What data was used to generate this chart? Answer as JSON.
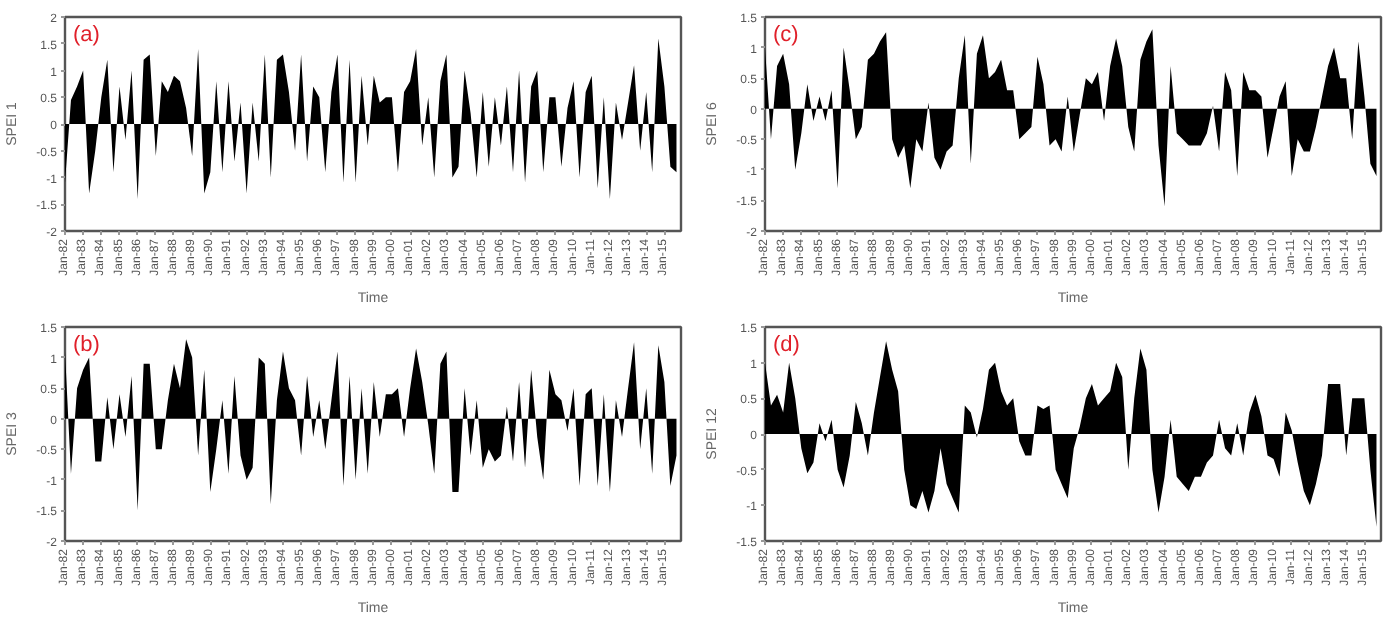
{
  "chart_data": [
    {
      "type": "area",
      "annotations": [
        "(a)"
      ],
      "xlabel": "Time",
      "ylabel": "SPEI 1",
      "grid": false,
      "color": "#000000",
      "x": [
        "1982-01",
        "1982-05",
        "1982-09",
        "1983-01",
        "1983-05",
        "1983-09",
        "1984-01",
        "1984-05",
        "1984-09",
        "1985-01",
        "1985-05",
        "1985-09",
        "1986-01",
        "1986-05",
        "1986-09",
        "1987-01",
        "1987-05",
        "1987-09",
        "1988-01",
        "1988-05",
        "1988-09",
        "1989-01",
        "1989-05",
        "1989-09",
        "1990-01",
        "1990-05",
        "1990-09",
        "1991-01",
        "1991-05",
        "1991-09",
        "1992-01",
        "1992-05",
        "1992-09",
        "1993-01",
        "1993-05",
        "1993-09",
        "1994-01",
        "1994-05",
        "1994-09",
        "1995-01",
        "1995-05",
        "1995-09",
        "1996-01",
        "1996-05",
        "1996-09",
        "1997-01",
        "1997-05",
        "1997-09",
        "1998-01",
        "1998-05",
        "1998-09",
        "1999-01",
        "1999-05",
        "1999-09",
        "2000-01",
        "2000-05",
        "2000-09",
        "2001-01",
        "2001-05",
        "2001-09",
        "2002-01",
        "2002-05",
        "2002-09",
        "2003-01",
        "2003-05",
        "2003-09",
        "2004-01",
        "2004-05",
        "2004-09",
        "2005-01",
        "2005-05",
        "2005-09",
        "2006-01",
        "2006-05",
        "2006-09",
        "2007-01",
        "2007-05",
        "2007-09",
        "2008-01",
        "2008-05",
        "2008-09",
        "2009-01",
        "2009-05",
        "2009-09",
        "2010-01",
        "2010-05",
        "2010-09",
        "2011-01",
        "2011-05",
        "2011-09",
        "2012-01",
        "2012-05",
        "2012-09",
        "2013-01",
        "2013-05",
        "2013-09",
        "2014-01",
        "2014-05",
        "2014-09",
        "2015-01",
        "2015-05",
        "2015-09"
      ],
      "values": [
        -1.1,
        0.45,
        0.7,
        1.0,
        -1.3,
        -0.5,
        0.5,
        1.2,
        -0.9,
        0.7,
        -0.3,
        1.0,
        -1.4,
        1.2,
        1.3,
        -0.6,
        0.8,
        0.6,
        0.9,
        0.8,
        0.3,
        -0.6,
        1.4,
        -1.3,
        -0.9,
        0.8,
        -0.9,
        0.8,
        -0.7,
        0.4,
        -1.3,
        0.4,
        -0.7,
        1.3,
        -1.0,
        1.2,
        1.3,
        0.6,
        -0.5,
        1.3,
        -0.7,
        0.7,
        0.5,
        -0.9,
        0.6,
        1.3,
        -1.1,
        1.2,
        -1.1,
        0.9,
        -0.4,
        0.9,
        0.4,
        0.5,
        0.5,
        -0.9,
        0.6,
        0.8,
        1.4,
        -0.4,
        0.5,
        -1.0,
        0.8,
        1.3,
        -1.0,
        -0.8,
        1.0,
        0.2,
        -1.0,
        0.6,
        -0.8,
        0.5,
        -0.4,
        0.7,
        -0.9,
        1.0,
        -1.1,
        0.7,
        1.0,
        -0.9,
        0.5,
        0.5,
        -0.8,
        0.3,
        0.8,
        -1.0,
        0.6,
        0.9,
        -1.2,
        0.5,
        -1.4,
        0.4,
        -0.3,
        0.4,
        1.1,
        -0.5,
        0.6,
        -0.9,
        1.6,
        0.7,
        -0.8,
        -0.9
      ],
      "xlim": [
        "1982-01",
        "2015-12"
      ],
      "ylim": [
        -2,
        2
      ],
      "yticks": [
        -2,
        -1.5,
        -1,
        -0.5,
        0,
        0.5,
        1,
        1.5,
        2
      ],
      "xticks": [
        {
          "value": "1982-01",
          "label": "Jan-82"
        },
        {
          "value": "1983-01",
          "label": "Jan-83"
        },
        {
          "value": "1984-01",
          "label": "Jan-84"
        },
        {
          "value": "1985-01",
          "label": "Jan-85"
        },
        {
          "value": "1986-01",
          "label": "Jan-86"
        },
        {
          "value": "1987-01",
          "label": "Jan-87"
        },
        {
          "value": "1988-01",
          "label": "Jan-88"
        },
        {
          "value": "1989-01",
          "label": "Jan-89"
        },
        {
          "value": "1990-01",
          "label": "Jan-90"
        },
        {
          "value": "1991-01",
          "label": "Jan-91"
        },
        {
          "value": "1992-01",
          "label": "Jan-92"
        },
        {
          "value": "1993-01",
          "label": "Jan-93"
        },
        {
          "value": "1994-01",
          "label": "Jan-94"
        },
        {
          "value": "1995-01",
          "label": "Jan-95"
        },
        {
          "value": "1996-01",
          "label": "Jan-96"
        },
        {
          "value": "1997-01",
          "label": "Jan-97"
        },
        {
          "value": "1998-01",
          "label": "Jan-98"
        },
        {
          "value": "1999-01",
          "label": "Jan-99"
        },
        {
          "value": "2000-01",
          "label": "Jan-00"
        },
        {
          "value": "2001-01",
          "label": "Jan-01"
        },
        {
          "value": "2002-01",
          "label": "Jan-02"
        },
        {
          "value": "2003-01",
          "label": "Jan-03"
        },
        {
          "value": "2004-01",
          "label": "Jan-04"
        },
        {
          "value": "2005-01",
          "label": "Jan-05"
        },
        {
          "value": "2006-01",
          "label": "Jan-06"
        },
        {
          "value": "2007-01",
          "label": "Jan-07"
        },
        {
          "value": "2008-01",
          "label": "Jan-08"
        },
        {
          "value": "2009-01",
          "label": "Jan-09"
        },
        {
          "value": "2010-01",
          "label": "Jan-10"
        },
        {
          "value": "2011-01",
          "label": "Jan-11"
        },
        {
          "value": "2012-01",
          "label": "Jan-12"
        },
        {
          "value": "2013-01",
          "label": "Jan-13"
        },
        {
          "value": "2014-01",
          "label": "Jan-14"
        },
        {
          "value": "2015-01",
          "label": "Jan-15"
        }
      ]
    },
    {
      "type": "area",
      "annotations": [
        "(c)"
      ],
      "xlabel": "Time",
      "ylabel": "SPEI 6",
      "grid": false,
      "color": "#000000",
      "x": [
        "1982-01",
        "1982-05",
        "1982-09",
        "1983-01",
        "1983-05",
        "1983-09",
        "1984-01",
        "1984-05",
        "1984-09",
        "1985-01",
        "1985-05",
        "1985-09",
        "1986-01",
        "1986-05",
        "1986-09",
        "1987-01",
        "1987-05",
        "1987-09",
        "1988-01",
        "1988-05",
        "1988-09",
        "1989-01",
        "1989-05",
        "1989-09",
        "1990-01",
        "1990-05",
        "1990-09",
        "1991-01",
        "1991-05",
        "1991-09",
        "1992-01",
        "1992-05",
        "1992-09",
        "1993-01",
        "1993-05",
        "1993-09",
        "1994-01",
        "1994-05",
        "1994-09",
        "1995-01",
        "1995-05",
        "1995-09",
        "1996-01",
        "1996-05",
        "1996-09",
        "1997-01",
        "1997-05",
        "1997-09",
        "1998-01",
        "1998-05",
        "1998-09",
        "1999-01",
        "1999-05",
        "1999-09",
        "2000-01",
        "2000-05",
        "2000-09",
        "2001-01",
        "2001-05",
        "2001-09",
        "2002-01",
        "2002-05",
        "2002-09",
        "2003-01",
        "2003-05",
        "2003-09",
        "2004-01",
        "2004-05",
        "2004-09",
        "2005-01",
        "2005-05",
        "2005-09",
        "2006-01",
        "2006-05",
        "2006-09",
        "2007-01",
        "2007-05",
        "2007-09",
        "2008-01",
        "2008-05",
        "2008-09",
        "2009-01",
        "2009-05",
        "2009-09",
        "2010-01",
        "2010-05",
        "2010-09",
        "2011-01",
        "2011-05",
        "2011-09",
        "2012-01",
        "2012-05",
        "2012-09",
        "2013-01",
        "2013-05",
        "2013-09",
        "2014-01",
        "2014-05",
        "2014-09",
        "2015-01",
        "2015-05",
        "2015-09"
      ],
      "values": [
        1.0,
        -0.5,
        0.7,
        0.9,
        0.4,
        -1.0,
        -0.4,
        0.4,
        -0.2,
        0.2,
        -0.2,
        0.3,
        -1.3,
        1.0,
        0.3,
        -0.5,
        -0.3,
        0.8,
        0.9,
        1.1,
        1.25,
        -0.5,
        -0.8,
        -0.6,
        -1.3,
        -0.5,
        -0.7,
        0.1,
        -0.8,
        -1.0,
        -0.7,
        -0.6,
        0.5,
        1.2,
        -0.9,
        0.9,
        1.2,
        0.5,
        0.6,
        0.8,
        0.3,
        0.3,
        -0.5,
        -0.4,
        -0.3,
        0.85,
        0.4,
        -0.6,
        -0.5,
        -0.7,
        0.2,
        -0.7,
        -0.1,
        0.5,
        0.4,
        0.6,
        -0.2,
        0.7,
        1.15,
        0.7,
        -0.3,
        -0.7,
        0.8,
        1.1,
        1.3,
        -0.6,
        -1.6,
        0.7,
        -0.4,
        -0.5,
        -0.6,
        -0.6,
        -0.6,
        -0.4,
        0.05,
        -0.7,
        0.6,
        0.3,
        -1.1,
        0.6,
        0.3,
        0.3,
        0.2,
        -0.8,
        -0.3,
        0.2,
        0.45,
        -1.1,
        -0.5,
        -0.7,
        -0.7,
        -0.3,
        0.2,
        0.7,
        1.0,
        0.5,
        0.5,
        -0.5,
        1.1,
        0.2,
        -0.9,
        -1.1
      ],
      "xlim": [
        "1982-01",
        "2015-12"
      ],
      "ylim": [
        -2,
        1.5
      ],
      "yticks": [
        -2,
        -1.5,
        -1,
        -0.5,
        0,
        0.5,
        1,
        1.5
      ],
      "xticks": [
        {
          "value": "1982-01",
          "label": "Jan-82"
        },
        {
          "value": "1983-01",
          "label": "Jan-83"
        },
        {
          "value": "1984-01",
          "label": "Jan-84"
        },
        {
          "value": "1985-01",
          "label": "Jan-85"
        },
        {
          "value": "1986-01",
          "label": "Jan-86"
        },
        {
          "value": "1987-01",
          "label": "Jan-87"
        },
        {
          "value": "1988-01",
          "label": "Jan-88"
        },
        {
          "value": "1989-01",
          "label": "Jan-89"
        },
        {
          "value": "1990-01",
          "label": "Jan-90"
        },
        {
          "value": "1991-01",
          "label": "Jan-91"
        },
        {
          "value": "1992-01",
          "label": "Jan-92"
        },
        {
          "value": "1993-01",
          "label": "Jan-93"
        },
        {
          "value": "1994-01",
          "label": "Jan-94"
        },
        {
          "value": "1995-01",
          "label": "Jan-95"
        },
        {
          "value": "1996-01",
          "label": "Jan-96"
        },
        {
          "value": "1997-01",
          "label": "Jan-97"
        },
        {
          "value": "1998-01",
          "label": "Jan-98"
        },
        {
          "value": "1999-01",
          "label": "Jan-99"
        },
        {
          "value": "2000-01",
          "label": "Jan-00"
        },
        {
          "value": "2001-01",
          "label": "Jan-01"
        },
        {
          "value": "2002-01",
          "label": "Jan-02"
        },
        {
          "value": "2003-01",
          "label": "Jan-03"
        },
        {
          "value": "2004-01",
          "label": "Jan-04"
        },
        {
          "value": "2005-01",
          "label": "Jan-05"
        },
        {
          "value": "2006-01",
          "label": "Jan-06"
        },
        {
          "value": "2007-01",
          "label": "Jan-07"
        },
        {
          "value": "2008-01",
          "label": "Jan-08"
        },
        {
          "value": "2009-01",
          "label": "Jan-09"
        },
        {
          "value": "2010-01",
          "label": "Jan-10"
        },
        {
          "value": "2011-01",
          "label": "Jan-11"
        },
        {
          "value": "2012-01",
          "label": "Jan-12"
        },
        {
          "value": "2013-01",
          "label": "Jan-13"
        },
        {
          "value": "2014-01",
          "label": "Jan-14"
        },
        {
          "value": "2015-01",
          "label": "Jan-15"
        }
      ]
    },
    {
      "type": "area",
      "annotations": [
        "(b)"
      ],
      "xlabel": "Time",
      "ylabel": "SPEI 3",
      "grid": false,
      "color": "#000000",
      "x": [
        "1982-01",
        "1982-05",
        "1982-09",
        "1983-01",
        "1983-05",
        "1983-09",
        "1984-01",
        "1984-05",
        "1984-09",
        "1985-01",
        "1985-05",
        "1985-09",
        "1986-01",
        "1986-05",
        "1986-09",
        "1987-01",
        "1987-05",
        "1987-09",
        "1988-01",
        "1988-05",
        "1988-09",
        "1989-01",
        "1989-05",
        "1989-09",
        "1990-01",
        "1990-05",
        "1990-09",
        "1991-01",
        "1991-05",
        "1991-09",
        "1992-01",
        "1992-05",
        "1992-09",
        "1993-01",
        "1993-05",
        "1993-09",
        "1994-01",
        "1994-05",
        "1994-09",
        "1995-01",
        "1995-05",
        "1995-09",
        "1996-01",
        "1996-05",
        "1996-09",
        "1997-01",
        "1997-05",
        "1997-09",
        "1998-01",
        "1998-05",
        "1998-09",
        "1999-01",
        "1999-05",
        "1999-09",
        "2000-01",
        "2000-05",
        "2000-09",
        "2001-01",
        "2001-05",
        "2001-09",
        "2002-01",
        "2002-05",
        "2002-09",
        "2003-01",
        "2003-05",
        "2003-09",
        "2004-01",
        "2004-05",
        "2004-09",
        "2005-01",
        "2005-05",
        "2005-09",
        "2006-01",
        "2006-05",
        "2006-09",
        "2007-01",
        "2007-05",
        "2007-09",
        "2008-01",
        "2008-05",
        "2008-09",
        "2009-01",
        "2009-05",
        "2009-09",
        "2010-01",
        "2010-05",
        "2010-09",
        "2011-01",
        "2011-05",
        "2011-09",
        "2012-01",
        "2012-05",
        "2012-09",
        "2013-01",
        "2013-05",
        "2013-09",
        "2014-01",
        "2014-05",
        "2014-09",
        "2015-01",
        "2015-05",
        "2015-09"
      ],
      "values": [
        1.1,
        -0.9,
        0.5,
        0.8,
        1.0,
        -0.7,
        -0.7,
        0.35,
        -0.5,
        0.4,
        -0.3,
        0.7,
        -1.5,
        0.9,
        0.9,
        -0.5,
        -0.5,
        0.3,
        0.9,
        0.5,
        1.3,
        1.0,
        -0.6,
        0.8,
        -1.2,
        -0.5,
        0.3,
        -0.9,
        0.7,
        -0.6,
        -1.0,
        -0.8,
        1.0,
        0.9,
        -1.4,
        0.3,
        1.1,
        0.5,
        0.3,
        -0.6,
        0.7,
        -0.3,
        0.3,
        -0.5,
        0.3,
        1.1,
        -1.1,
        0.7,
        -1.0,
        0.5,
        -0.9,
        0.6,
        -0.3,
        0.4,
        0.4,
        0.5,
        -0.3,
        0.5,
        1.15,
        0.6,
        -0.1,
        -0.9,
        0.9,
        1.1,
        -1.2,
        -1.2,
        0.5,
        -0.6,
        0.3,
        -0.8,
        -0.5,
        -0.7,
        -0.6,
        0.2,
        -0.7,
        0.6,
        -0.8,
        0.8,
        -0.3,
        -1.0,
        0.8,
        0.4,
        0.3,
        -0.2,
        0.5,
        -1.1,
        0.4,
        0.5,
        -1.1,
        0.4,
        -1.2,
        0.3,
        -0.3,
        0.5,
        1.25,
        -0.5,
        0.5,
        -0.9,
        1.2,
        0.6,
        -1.1,
        -0.6
      ],
      "xlim": [
        "1982-01",
        "2015-12"
      ],
      "ylim": [
        -2,
        1.5
      ],
      "yticks": [
        -2,
        -1.5,
        -1,
        -0.5,
        0,
        0.5,
        1,
        1.5
      ],
      "xticks": [
        {
          "value": "1982-01",
          "label": "Jan-82"
        },
        {
          "value": "1983-01",
          "label": "Jan-83"
        },
        {
          "value": "1984-01",
          "label": "Jan-84"
        },
        {
          "value": "1985-01",
          "label": "Jan-85"
        },
        {
          "value": "1986-01",
          "label": "Jan-86"
        },
        {
          "value": "1987-01",
          "label": "Jan-87"
        },
        {
          "value": "1988-01",
          "label": "Jan-88"
        },
        {
          "value": "1989-01",
          "label": "Jan-89"
        },
        {
          "value": "1990-01",
          "label": "Jan-90"
        },
        {
          "value": "1991-01",
          "label": "Jan-91"
        },
        {
          "value": "1992-01",
          "label": "Jan-92"
        },
        {
          "value": "1993-01",
          "label": "Jan-93"
        },
        {
          "value": "1994-01",
          "label": "Jan-94"
        },
        {
          "value": "1995-01",
          "label": "Jan-95"
        },
        {
          "value": "1996-01",
          "label": "Jan-96"
        },
        {
          "value": "1997-01",
          "label": "Jan-97"
        },
        {
          "value": "1998-01",
          "label": "Jan-98"
        },
        {
          "value": "1999-01",
          "label": "Jan-99"
        },
        {
          "value": "2000-01",
          "label": "Jan-00"
        },
        {
          "value": "2001-01",
          "label": "Jan-01"
        },
        {
          "value": "2002-01",
          "label": "Jan-02"
        },
        {
          "value": "2003-01",
          "label": "Jan-03"
        },
        {
          "value": "2004-01",
          "label": "Jan-04"
        },
        {
          "value": "2005-01",
          "label": "Jan-05"
        },
        {
          "value": "2006-01",
          "label": "Jan-06"
        },
        {
          "value": "2007-01",
          "label": "Jan-07"
        },
        {
          "value": "2008-01",
          "label": "Jan-08"
        },
        {
          "value": "2009-01",
          "label": "Jan-09"
        },
        {
          "value": "2010-01",
          "label": "Jan-10"
        },
        {
          "value": "2011-01",
          "label": "Jan-11"
        },
        {
          "value": "2012-01",
          "label": "Jan-12"
        },
        {
          "value": "2013-01",
          "label": "Jan-13"
        },
        {
          "value": "2014-01",
          "label": "Jan-14"
        },
        {
          "value": "2015-01",
          "label": "Jan-15"
        }
      ]
    },
    {
      "type": "area",
      "annotations": [
        "(d)"
      ],
      "xlabel": "Time",
      "ylabel": "SPEI 12",
      "grid": false,
      "color": "#000000",
      "x": [
        "1982-01",
        "1982-05",
        "1982-09",
        "1983-01",
        "1983-05",
        "1983-09",
        "1984-01",
        "1984-05",
        "1984-09",
        "1985-01",
        "1985-05",
        "1985-09",
        "1986-01",
        "1986-05",
        "1986-09",
        "1987-01",
        "1987-05",
        "1987-09",
        "1988-01",
        "1988-05",
        "1988-09",
        "1989-01",
        "1989-05",
        "1989-09",
        "1990-01",
        "1990-05",
        "1990-09",
        "1991-01",
        "1991-05",
        "1991-09",
        "1992-01",
        "1992-05",
        "1992-09",
        "1993-01",
        "1993-05",
        "1993-09",
        "1994-01",
        "1994-05",
        "1994-09",
        "1995-01",
        "1995-05",
        "1995-09",
        "1996-01",
        "1996-05",
        "1996-09",
        "1997-01",
        "1997-05",
        "1997-09",
        "1998-01",
        "1998-05",
        "1998-09",
        "1999-01",
        "1999-05",
        "1999-09",
        "2000-01",
        "2000-05",
        "2000-09",
        "2001-01",
        "2001-05",
        "2001-09",
        "2002-01",
        "2002-05",
        "2002-09",
        "2003-01",
        "2003-05",
        "2003-09",
        "2004-01",
        "2004-05",
        "2004-09",
        "2005-01",
        "2005-05",
        "2005-09",
        "2006-01",
        "2006-05",
        "2006-09",
        "2007-01",
        "2007-05",
        "2007-09",
        "2008-01",
        "2008-05",
        "2008-09",
        "2009-01",
        "2009-05",
        "2009-09",
        "2010-01",
        "2010-05",
        "2010-09",
        "2011-01",
        "2011-05",
        "2011-09",
        "2012-01",
        "2012-05",
        "2012-09",
        "2013-01",
        "2013-05",
        "2013-09",
        "2014-01",
        "2014-05",
        "2014-09",
        "2015-01",
        "2015-05",
        "2015-09"
      ],
      "values": [
        1.0,
        0.4,
        0.55,
        0.3,
        1.0,
        0.5,
        -0.2,
        -0.55,
        -0.4,
        0.15,
        -0.1,
        0.2,
        -0.5,
        -0.75,
        -0.3,
        0.45,
        0.15,
        -0.3,
        0.3,
        0.8,
        1.3,
        0.9,
        0.6,
        -0.5,
        -1.0,
        -1.05,
        -0.8,
        -1.1,
        -0.8,
        -0.2,
        -0.7,
        -0.9,
        -1.1,
        0.4,
        0.3,
        -0.05,
        0.35,
        0.9,
        1.0,
        0.6,
        0.4,
        0.5,
        -0.1,
        -0.3,
        -0.3,
        0.4,
        0.35,
        0.4,
        -0.5,
        -0.7,
        -0.9,
        -0.2,
        0.1,
        0.5,
        0.7,
        0.4,
        0.5,
        0.6,
        1.0,
        0.8,
        -0.5,
        0.5,
        1.2,
        0.9,
        -0.5,
        -1.1,
        -0.6,
        0.2,
        -0.6,
        -0.7,
        -0.8,
        -0.6,
        -0.6,
        -0.4,
        -0.3,
        0.2,
        -0.2,
        -0.3,
        0.15,
        -0.3,
        0.3,
        0.55,
        0.25,
        -0.3,
        -0.35,
        -0.6,
        0.3,
        0.05,
        -0.4,
        -0.8,
        -1.0,
        -0.7,
        -0.3,
        0.7,
        0.7,
        0.7,
        -0.3,
        0.5,
        0.5,
        0.5,
        -0.5,
        -1.3
      ],
      "xlim": [
        "1982-01",
        "2015-12"
      ],
      "ylim": [
        -1.5,
        1.5
      ],
      "yticks": [
        -1.5,
        -1,
        -0.5,
        0,
        0.5,
        1,
        1.5
      ],
      "xticks": [
        {
          "value": "1982-01",
          "label": "Jan-82"
        },
        {
          "value": "1983-01",
          "label": "Jan-83"
        },
        {
          "value": "1984-01",
          "label": "Jan-84"
        },
        {
          "value": "1985-01",
          "label": "Jan-85"
        },
        {
          "value": "1986-01",
          "label": "Jan-86"
        },
        {
          "value": "1987-01",
          "label": "Jan-87"
        },
        {
          "value": "1988-01",
          "label": "Jan-88"
        },
        {
          "value": "1989-01",
          "label": "Jan-89"
        },
        {
          "value": "1990-01",
          "label": "Jan-90"
        },
        {
          "value": "1991-01",
          "label": "Jan-91"
        },
        {
          "value": "1992-01",
          "label": "Jan-92"
        },
        {
          "value": "1993-01",
          "label": "Jan-93"
        },
        {
          "value": "1994-01",
          "label": "Jan-94"
        },
        {
          "value": "1995-01",
          "label": "Jan-95"
        },
        {
          "value": "1996-01",
          "label": "Jan-96"
        },
        {
          "value": "1997-01",
          "label": "Jan-97"
        },
        {
          "value": "1998-01",
          "label": "Jan-98"
        },
        {
          "value": "1999-01",
          "label": "Jan-99"
        },
        {
          "value": "2000-01",
          "label": "Jan-00"
        },
        {
          "value": "2001-01",
          "label": "Jan-01"
        },
        {
          "value": "2002-01",
          "label": "Jan-02"
        },
        {
          "value": "2003-01",
          "label": "Jan-03"
        },
        {
          "value": "2004-01",
          "label": "Jan-04"
        },
        {
          "value": "2005-01",
          "label": "Jan-05"
        },
        {
          "value": "2006-01",
          "label": "Jan-06"
        },
        {
          "value": "2007-01",
          "label": "Jan-07"
        },
        {
          "value": "2008-01",
          "label": "Jan-08"
        },
        {
          "value": "2009-01",
          "label": "Jan-09"
        },
        {
          "value": "2010-01",
          "label": "Jan-10"
        },
        {
          "value": "2011-01",
          "label": "Jan-11"
        },
        {
          "value": "2012-01",
          "label": "Jan-12"
        },
        {
          "value": "2013-01",
          "label": "Jan-13"
        },
        {
          "value": "2014-01",
          "label": "Jan-14"
        },
        {
          "value": "2015-01",
          "label": "Jan-15"
        }
      ]
    }
  ]
}
